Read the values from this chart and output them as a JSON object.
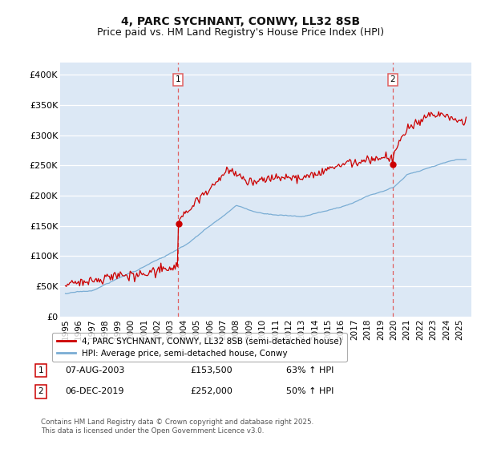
{
  "title": "4, PARC SYCHNANT, CONWY, LL32 8SB",
  "subtitle": "Price paid vs. HM Land Registry's House Price Index (HPI)",
  "ylim": [
    0,
    420000
  ],
  "yticks": [
    0,
    50000,
    100000,
    150000,
    200000,
    250000,
    300000,
    350000,
    400000
  ],
  "ytick_labels": [
    "£0",
    "£50K",
    "£100K",
    "£150K",
    "£200K",
    "£250K",
    "£300K",
    "£350K",
    "£400K"
  ],
  "background_color": "#dce8f5",
  "grid_color": "#ffffff",
  "sale1_date": 2003.58,
  "sale1_price": 153500,
  "sale2_date": 2019.92,
  "sale2_price": 252000,
  "vline_color": "#e06060",
  "red_line_color": "#cc0000",
  "blue_line_color": "#7aadd4",
  "legend_label_red": "4, PARC SYCHNANT, CONWY, LL32 8SB (semi-detached house)",
  "legend_label_blue": "HPI: Average price, semi-detached house, Conwy",
  "table_rows": [
    [
      "1",
      "07-AUG-2003",
      "£153,500",
      "63% ↑ HPI"
    ],
    [
      "2",
      "06-DEC-2019",
      "£252,000",
      "50% ↑ HPI"
    ]
  ],
  "footnote": "Contains HM Land Registry data © Crown copyright and database right 2025.\nThis data is licensed under the Open Government Licence v3.0.",
  "title_fontsize": 10,
  "subtitle_fontsize": 9,
  "tick_fontsize": 8
}
